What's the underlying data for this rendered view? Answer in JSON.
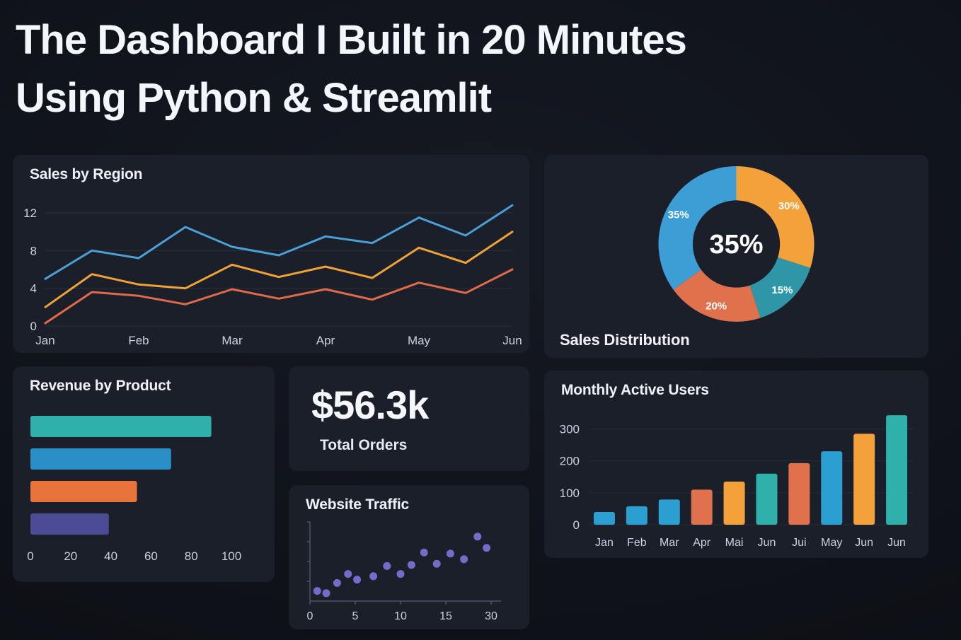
{
  "page": {
    "title_line1": "The Dashboard I Built in 20 Minutes",
    "title_line2": "Using Python & Streamlit"
  },
  "kpi": {
    "value": "$56.3k",
    "label": "Total Orders"
  },
  "chart_data": [
    {
      "id": "sales_by_region",
      "type": "line",
      "title": "Sales by Region",
      "x_tick_labels": [
        "Jan",
        "Feb",
        "Mar",
        "Apr",
        "May",
        "Jun"
      ],
      "y_ticks": [
        0,
        4,
        8,
        12
      ],
      "ylim": [
        0,
        13.5
      ],
      "grid": true,
      "legend": false,
      "series": [
        {
          "color": "#4aa0d5",
          "values": [
            5,
            8,
            7.2,
            10.5,
            8.4,
            7.5,
            9.5,
            8.8,
            11.5,
            9.6,
            12.8
          ]
        },
        {
          "color": "#f0a236",
          "values": [
            2,
            5.5,
            4.4,
            4,
            6.5,
            5.2,
            6.3,
            5.1,
            8.3,
            6.7,
            10
          ]
        },
        {
          "color": "#e06a4a",
          "values": [
            0.3,
            3.6,
            3.2,
            2.3,
            3.9,
            2.9,
            3.9,
            2.8,
            4.6,
            3.5,
            6
          ]
        }
      ]
    },
    {
      "id": "sales_distribution",
      "type": "pie",
      "title": "Sales Distribution",
      "donut": true,
      "center_label": "35%",
      "slices": [
        {
          "label": "30%",
          "value": 30,
          "color": "#f2a13b"
        },
        {
          "label": "15%",
          "value": 15,
          "color": "#2e96a6"
        },
        {
          "label": "20%",
          "value": 20,
          "color": "#e0714d"
        },
        {
          "label": "35%",
          "value": 35,
          "color": "#3d9ed6"
        }
      ]
    },
    {
      "id": "revenue_by_product",
      "type": "bar",
      "orientation": "horizontal",
      "title": "Revenue by Product",
      "x_ticks": [
        0,
        20,
        40,
        60,
        80,
        100
      ],
      "xlim": [
        0,
        100
      ],
      "bars": [
        {
          "value": 90,
          "color": "#2fb0ab"
        },
        {
          "value": 70,
          "color": "#2a8fc7"
        },
        {
          "value": 53,
          "color": "#e8743c"
        },
        {
          "value": 39,
          "color": "#4c4b96"
        }
      ]
    },
    {
      "id": "website_traffic",
      "type": "scatter",
      "title": "Website Traffic",
      "x_tick_labels": [
        "0",
        "5",
        "10",
        "15",
        "30"
      ],
      "xlim": [
        0,
        20
      ],
      "ylim": [
        0,
        7
      ],
      "dot_color": "#7a70d2",
      "points": [
        [
          0.8,
          0.9
        ],
        [
          1.8,
          0.7
        ],
        [
          3,
          1.6
        ],
        [
          4.2,
          2.4
        ],
        [
          5.2,
          1.9
        ],
        [
          7,
          2.2
        ],
        [
          8.5,
          3.1
        ],
        [
          10,
          2.4
        ],
        [
          11.2,
          3.2
        ],
        [
          12.6,
          4.3
        ],
        [
          14,
          3.3
        ],
        [
          15.5,
          4.2
        ],
        [
          17,
          3.7
        ],
        [
          18.5,
          5.7
        ],
        [
          19.5,
          4.7
        ]
      ]
    },
    {
      "id": "monthly_active_users",
      "type": "bar",
      "orientation": "vertical",
      "title": "Monthly Active Users",
      "categories": [
        "Jan",
        "Feb",
        "Mar",
        "Apr",
        "Mai",
        "Jun",
        "Jui",
        "May",
        "Jun",
        "Jun"
      ],
      "y_ticks": [
        0,
        100,
        200,
        300
      ],
      "ylim": [
        0,
        350
      ],
      "bars": [
        {
          "value": 40,
          "color": "#2b9fd1"
        },
        {
          "value": 58,
          "color": "#2b9fd1"
        },
        {
          "value": 79,
          "color": "#2b9fd1"
        },
        {
          "value": 110,
          "color": "#e0714d"
        },
        {
          "value": 135,
          "color": "#f2a13b"
        },
        {
          "value": 160,
          "color": "#2fb0ab"
        },
        {
          "value": 193,
          "color": "#e0714d"
        },
        {
          "value": 230,
          "color": "#2b9fd1"
        },
        {
          "value": 285,
          "color": "#f2a13b"
        },
        {
          "value": 343,
          "color": "#2fb0ab"
        }
      ]
    }
  ],
  "colors": {
    "background": "#0f1218",
    "card": "#1b1f2a",
    "grid": "#2b303c",
    "text_primary": "#f3f6fa",
    "text_tick": "#ccd2dd"
  }
}
